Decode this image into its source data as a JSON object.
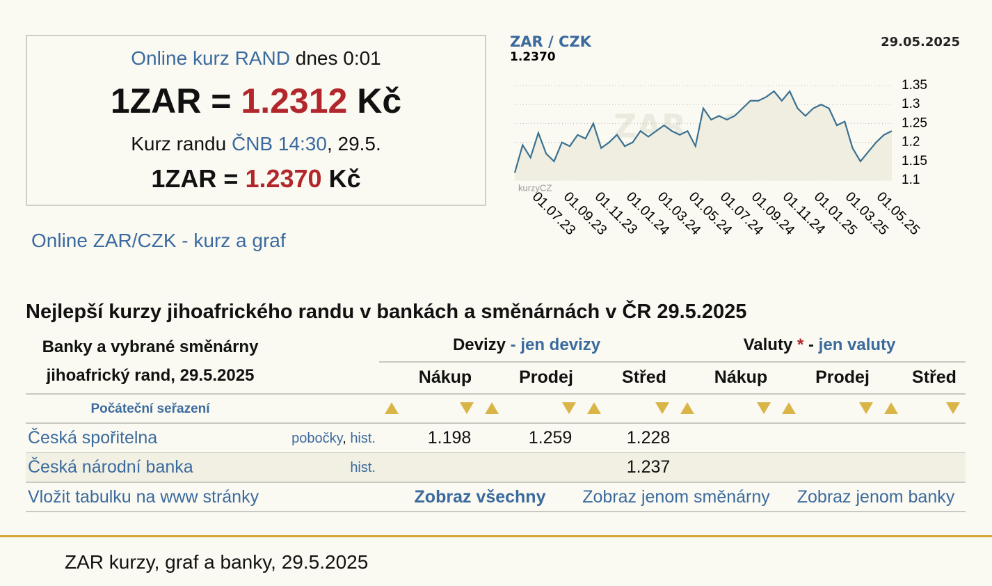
{
  "rate_box": {
    "line1_link": "Online kurz RAND",
    "line1_rest": "dnes 0:01",
    "big_prefix": "1ZAR =",
    "big_value": "1.2312",
    "big_unit": "Kč",
    "line3_a": "Kurz randu",
    "line3_link": "ČNB 14:30",
    "line3_b": ", 29.5.",
    "cnb_prefix": "1ZAR =",
    "cnb_value": "1.2370",
    "cnb_unit": "Kč"
  },
  "graph_link": "Online ZAR/CZK - kurz a graf",
  "chart": {
    "type": "line",
    "title": "ZAR / CZK",
    "subtitle": "1.2370",
    "date": "29.05.2025",
    "watermark": "ZAR / CZK",
    "logo": "kurzyCZ",
    "xtick_labels": [
      "01.07.23",
      "01.09.23",
      "01.11.23",
      "01.01.24",
      "01.03.24",
      "01.05.24",
      "01.07.24",
      "01.09.24",
      "01.11.24",
      "01.01.25",
      "01.03.25",
      "01.05.25"
    ],
    "ylim": [
      1.1,
      1.35
    ],
    "yticks": [
      1.1,
      1.15,
      1.2,
      1.25,
      1.3,
      1.35
    ],
    "grid": true,
    "series": [
      {
        "color": "#3a7090",
        "values": [
          1.12,
          1.193,
          1.16,
          1.225,
          1.17,
          1.15,
          1.2,
          1.19,
          1.22,
          1.21,
          1.25,
          1.185,
          1.2,
          1.22,
          1.19,
          1.2,
          1.23,
          1.215,
          1.23,
          1.245,
          1.23,
          1.22,
          1.23,
          1.19,
          1.29,
          1.26,
          1.27,
          1.26,
          1.27,
          1.29,
          1.31,
          1.31,
          1.32,
          1.335,
          1.31,
          1.335,
          1.29,
          1.27,
          1.29,
          1.3,
          1.29,
          1.245,
          1.255,
          1.185,
          1.15,
          1.175,
          1.2,
          1.22,
          1.23
        ]
      }
    ]
  },
  "table": {
    "title": "Nejlepší kurzy jihoafrického randu v bankách a směnárnách v ČR 29.5.2025",
    "header_left": [
      "Banky a vybrané směnárny",
      "jihoafrický rand, 29.5.2025"
    ],
    "devizy": {
      "label": "Devizy",
      "sep": "-",
      "link": "jen devizy"
    },
    "valuty": {
      "label": "Valuty",
      "star": "*",
      "sep": "-",
      "link": "jen valuty"
    },
    "columns": [
      "Nákup",
      "Prodej",
      "Střed",
      "Nákup",
      "Prodej",
      "Střed"
    ],
    "sort_label": "Počáteční seřazení",
    "rows": [
      {
        "name": "Česká spořitelna",
        "links": [
          "pobočky",
          "hist."
        ],
        "link_sep": ",",
        "values": [
          "1.198",
          "1.259",
          "1.228",
          null,
          null,
          null
        ]
      },
      {
        "name": "Česká národní banka",
        "links": [
          "hist."
        ],
        "values": [
          null,
          null,
          "1.237",
          null,
          null,
          null
        ]
      }
    ],
    "footer": [
      "Vložit tabulku na www stránky",
      "Zobraz všechny",
      "Zobraz jenom směnárny",
      "Zobraz jenom banky"
    ]
  },
  "footer_text": "ZAR kurzy, graf a banky, 29.5.2025"
}
